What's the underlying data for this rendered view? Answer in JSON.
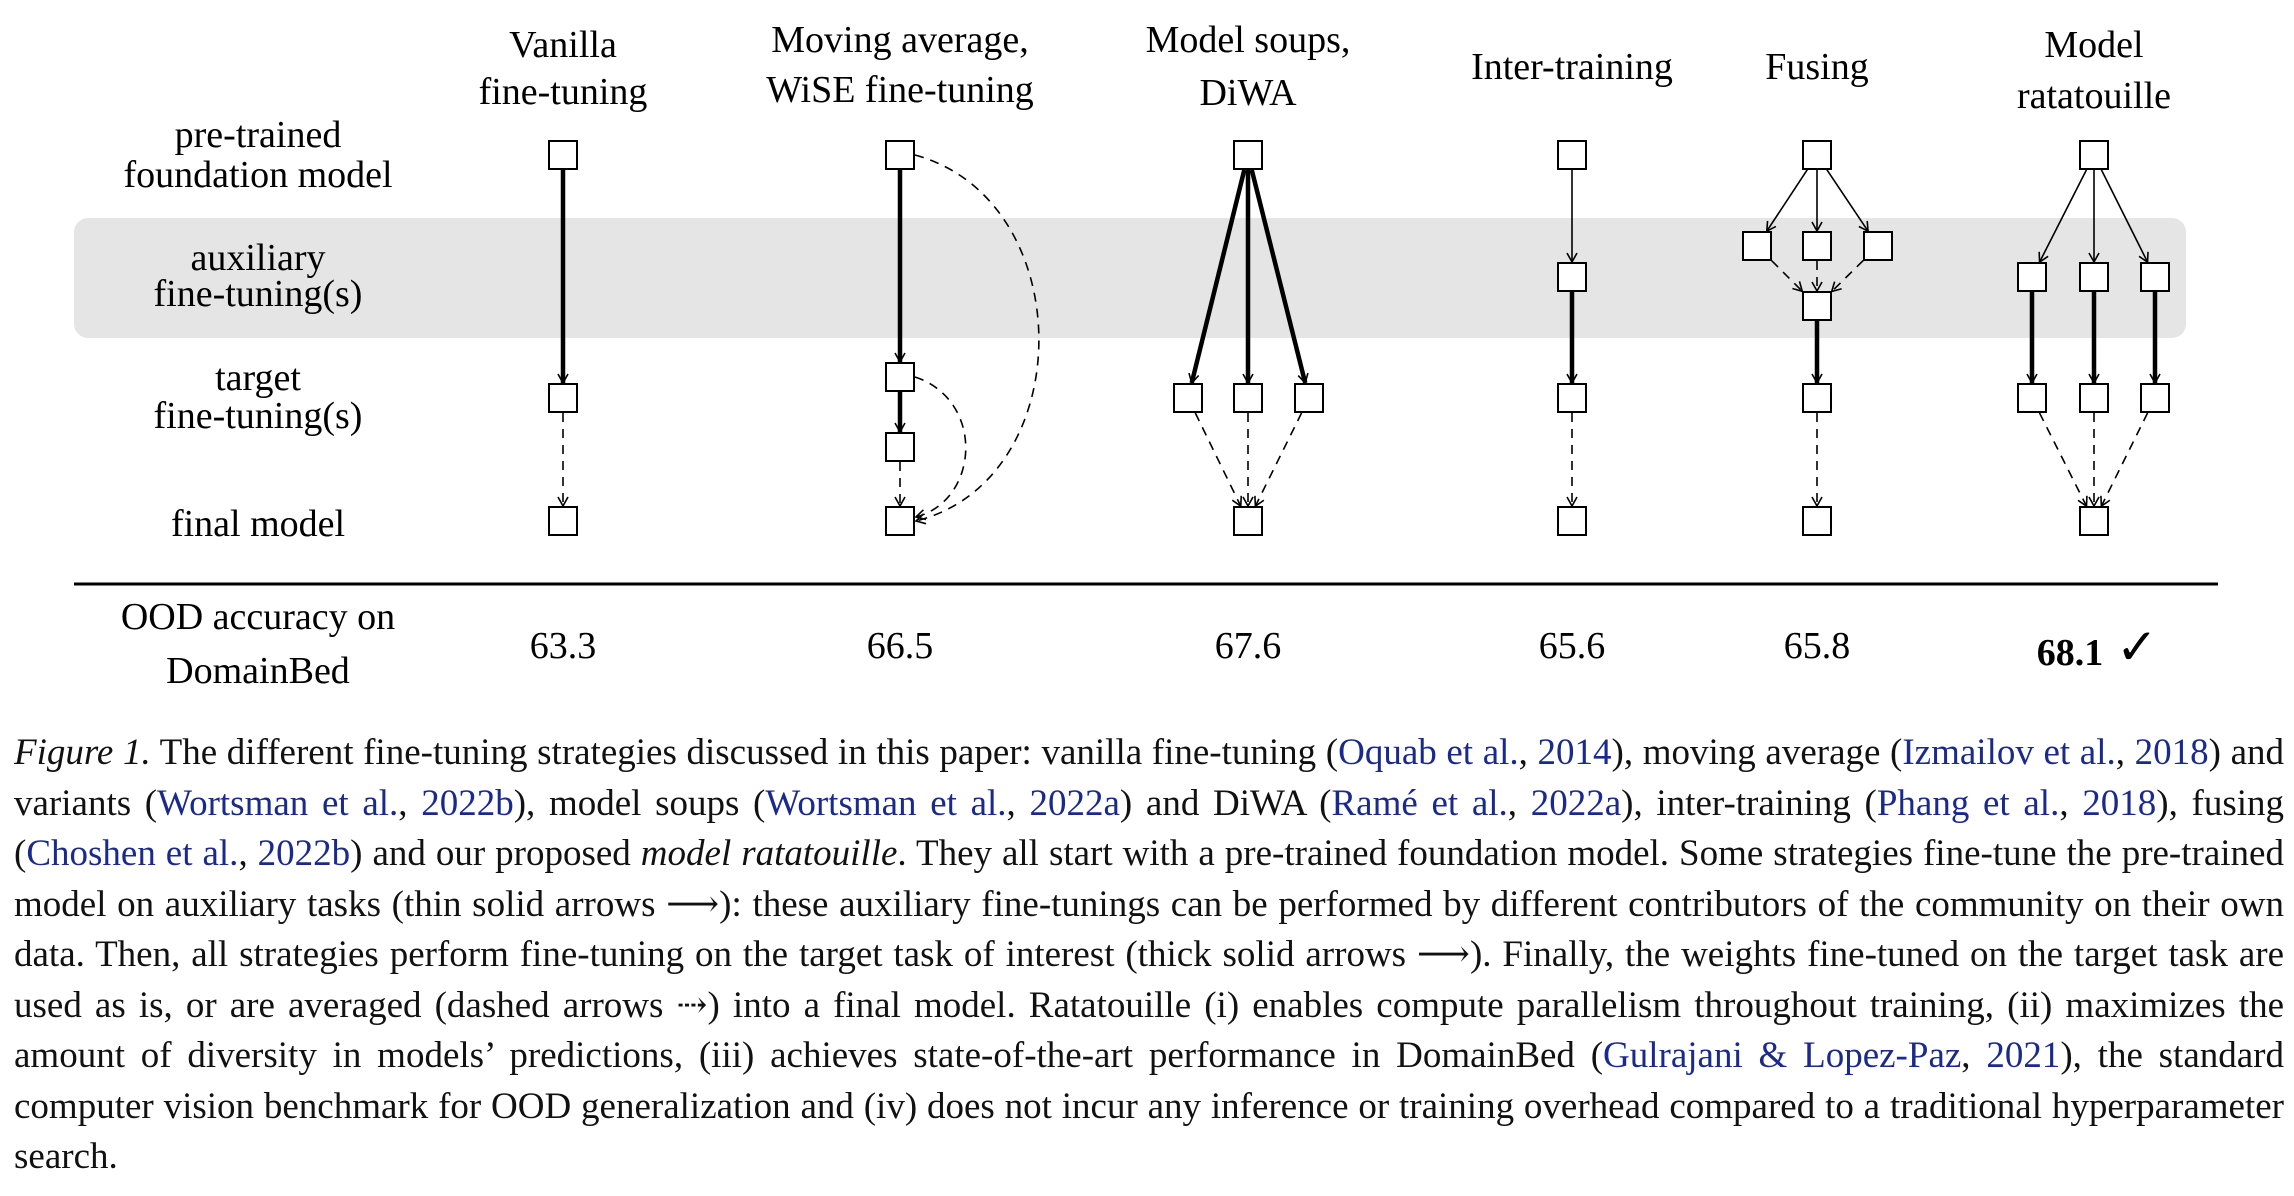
{
  "figure": {
    "columns": [
      {
        "lines": [
          "Vanilla",
          "fine-tuning"
        ]
      },
      {
        "lines": [
          "Moving average,",
          "WiSE fine-tuning"
        ]
      },
      {
        "lines": [
          "Model soups,",
          "DiWA"
        ]
      },
      {
        "lines": [
          "Inter-training"
        ]
      },
      {
        "lines": [
          "Fusing"
        ]
      },
      {
        "lines": [
          "Model",
          "ratatouille"
        ]
      }
    ],
    "rows": [
      {
        "lines": [
          "pre-trained",
          "foundation model"
        ]
      },
      {
        "lines": [
          "auxiliary",
          "fine-tuning(s)"
        ]
      },
      {
        "lines": [
          "target",
          "fine-tuning(s)"
        ]
      },
      {
        "lines": [
          "final model"
        ]
      }
    ],
    "accuracy_label": [
      "OOD accuracy on",
      "DomainBed"
    ],
    "accuracy_values": [
      "63.3",
      "66.5",
      "67.6",
      "65.6",
      "65.8",
      "68.1"
    ],
    "best_mark": "✓",
    "colors": {
      "band": "#e5e5e5",
      "line": "#000000",
      "citation": "#1a2a8c"
    }
  },
  "caption": {
    "label": "Figure 1.",
    "t1": " The different fine-tuning strategies discussed in this paper: vanilla fine-tuning (",
    "c1a": "Oquab et al.",
    "s1": ", ",
    "c1b": "2014",
    "t2": "), moving average (",
    "c2a": "Izmailov et al.",
    "s2": ", ",
    "c2b": "2018",
    "t3": ") and variants (",
    "c3a": "Wortsman et al.",
    "s3": ", ",
    "c3b": "2022b",
    "t4": "), model soups (",
    "c4a": "Wortsman et al.",
    "s4": ", ",
    "c4b": "2022a",
    "t5": ") and DiWA (",
    "c5a": "Ramé et al.",
    "s5": ", ",
    "c5b": "2022a",
    "t6": "), inter-training (",
    "c6a": "Phang et al.",
    "s6": ", ",
    "c6b": "2018",
    "t7": "), fusing (",
    "c7a": "Choshen et al.",
    "s7": ", ",
    "c7b": "2022b",
    "t8": ") and our proposed ",
    "em1": "model ratatouille",
    "t9": ". They all start with a pre-trained foundation model. Some strategies fine-tune the pre-trained model on auxiliary tasks (thin solid arrows ⟶): these auxiliary fine-tunings can be performed by different contributors of the community on their own data. Then, all strategies perform fine-tuning on the target task of interest (thick solid arrows ⟶). Finally, the weights fine-tuned on the target task are used as is, or are averaged (dashed arrows ⇢) into a final model. Ratatouille (i) enables compute parallelism throughout training, (ii) maximizes the amount of diversity in models’ predictions, (iii) achieves state-of-the-art performance in DomainBed (",
    "c8a": "Gulrajani & Lopez-Paz",
    "s8": ", ",
    "c8b": "2021",
    "t10": "), the standard computer vision benchmark for OOD generalization and (iv) does not incur any inference or training overhead compared to a traditional hyperparameter search."
  }
}
